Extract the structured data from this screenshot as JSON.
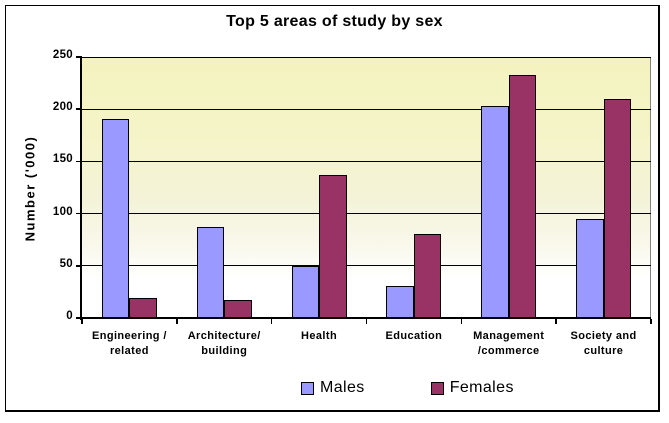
{
  "chart_data": {
    "type": "bar",
    "title": "Top 5 areas of study by sex",
    "ylabel": "Number ('000)",
    "xlabel": "",
    "categories": [
      "Engineering / related",
      "Architecture/ building",
      "Health",
      "Education",
      "Management /commerce",
      "Society and culture"
    ],
    "category_label_lines": [
      [
        "Engineering /",
        "related"
      ],
      [
        "Architecture/",
        "building"
      ],
      [
        "Health"
      ],
      [
        "Education"
      ],
      [
        "Management",
        "/commerce"
      ],
      [
        "Society and",
        "culture"
      ]
    ],
    "series": [
      {
        "name": "Males",
        "color": "#9999FF",
        "values": [
          191,
          87,
          50,
          31,
          203,
          95
        ]
      },
      {
        "name": "Females",
        "color": "#993366",
        "values": [
          19,
          17,
          137,
          80,
          233,
          210
        ]
      }
    ],
    "ylim": [
      0,
      250
    ],
    "yticks": [
      0,
      50,
      100,
      150,
      200,
      250
    ],
    "grid": true,
    "legend_position": "bottom",
    "colors": {
      "males_bar": "#9999FF",
      "females_bar": "#993366",
      "plot_bg_top": "#F4F3C1",
      "plot_bg_bottom": "#FFFFFF",
      "axis": "#000000",
      "plot_border": "#848284"
    }
  }
}
